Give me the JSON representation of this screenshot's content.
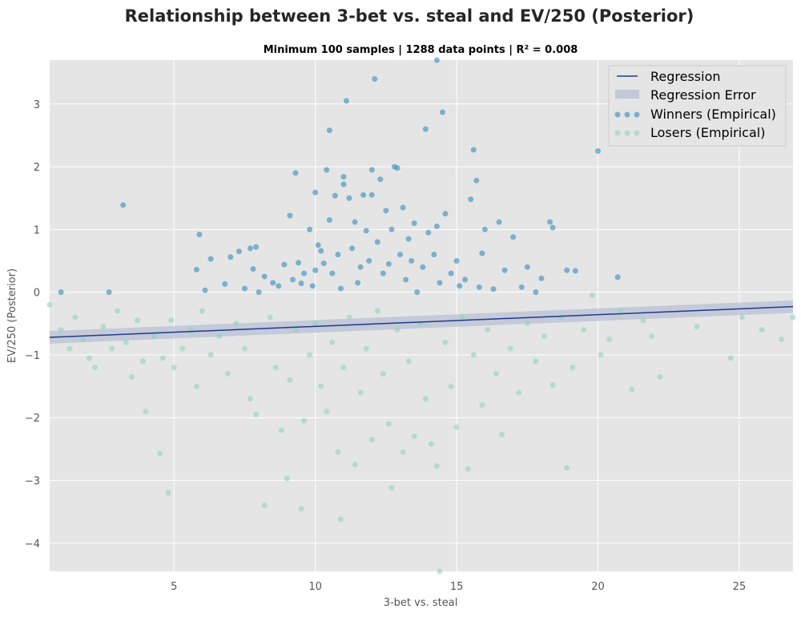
{
  "chart_data": {
    "type": "scatter",
    "title": "Relationship between 3-bet vs. steal and EV/250 (Posterior)",
    "subtitle": "Minimum 100 samples | 1288 data points | R²  =  0.008",
    "xlabel": "3-bet vs. steal",
    "ylabel": "EV/250 (Posterior)",
    "xlim": [
      0.6,
      26.9
    ],
    "ylim": [
      -4.45,
      3.7
    ],
    "x_ticks": [
      5,
      10,
      15,
      20,
      25
    ],
    "y_ticks": [
      -4,
      -3,
      -2,
      -1,
      0,
      1,
      2,
      3
    ],
    "x_tick_labels": [
      "5",
      "10",
      "15",
      "20",
      "25"
    ],
    "y_tick_labels": [
      "−4",
      "−3",
      "−2",
      "−1",
      "0",
      "1",
      "2",
      "3"
    ],
    "grid": true,
    "legend_position": "top-right",
    "legend": [
      {
        "label": "Regression",
        "kind": "line"
      },
      {
        "label": "Regression Error",
        "kind": "band"
      },
      {
        "label": "Winners (Empirical)",
        "kind": "scatter"
      },
      {
        "label": "Losers (Empirical)",
        "kind": "scatter"
      }
    ],
    "regression": {
      "x": [
        0.6,
        26.9
      ],
      "y": [
        -0.72,
        -0.23
      ],
      "error_halfwidth": 0.1
    },
    "winners_points": [
      [
        1.0,
        0.0
      ],
      [
        2.7,
        0.0
      ],
      [
        3.2,
        1.39
      ],
      [
        5.8,
        0.36
      ],
      [
        5.9,
        0.92
      ],
      [
        6.1,
        0.03
      ],
      [
        6.3,
        0.53
      ],
      [
        6.8,
        0.13
      ],
      [
        7.0,
        0.56
      ],
      [
        7.3,
        0.65
      ],
      [
        7.5,
        0.06
      ],
      [
        7.7,
        0.7
      ],
      [
        7.8,
        0.37
      ],
      [
        7.9,
        0.72
      ],
      [
        8.0,
        0.0
      ],
      [
        8.2,
        0.25
      ],
      [
        8.5,
        0.15
      ],
      [
        8.7,
        0.1
      ],
      [
        8.9,
        0.44
      ],
      [
        9.1,
        1.22
      ],
      [
        9.2,
        0.2
      ],
      [
        9.3,
        1.9
      ],
      [
        9.4,
        0.47
      ],
      [
        9.5,
        0.14
      ],
      [
        9.6,
        0.3
      ],
      [
        9.8,
        1.0
      ],
      [
        9.9,
        0.1
      ],
      [
        10.0,
        0.35
      ],
      [
        10.0,
        1.59
      ],
      [
        10.1,
        0.75
      ],
      [
        10.2,
        0.66
      ],
      [
        10.3,
        0.46
      ],
      [
        10.4,
        1.95
      ],
      [
        10.5,
        2.58
      ],
      [
        10.5,
        1.15
      ],
      [
        10.6,
        0.3
      ],
      [
        10.7,
        1.54
      ],
      [
        10.8,
        0.6
      ],
      [
        10.9,
        0.06
      ],
      [
        11.0,
        1.72
      ],
      [
        11.0,
        1.84
      ],
      [
        11.1,
        3.05
      ],
      [
        11.2,
        1.5
      ],
      [
        11.3,
        0.7
      ],
      [
        11.4,
        1.12
      ],
      [
        11.5,
        0.15
      ],
      [
        11.6,
        0.4
      ],
      [
        11.7,
        1.55
      ],
      [
        11.8,
        0.98
      ],
      [
        11.9,
        0.5
      ],
      [
        12.0,
        1.95
      ],
      [
        12.0,
        1.55
      ],
      [
        12.1,
        3.4
      ],
      [
        12.2,
        0.8
      ],
      [
        12.3,
        1.8
      ],
      [
        12.4,
        0.3
      ],
      [
        12.5,
        1.3
      ],
      [
        12.6,
        0.45
      ],
      [
        12.7,
        1.0
      ],
      [
        12.8,
        2.0
      ],
      [
        12.9,
        1.98
      ],
      [
        13.0,
        0.6
      ],
      [
        13.1,
        1.35
      ],
      [
        13.2,
        0.2
      ],
      [
        13.3,
        0.85
      ],
      [
        13.4,
        0.5
      ],
      [
        13.5,
        1.1
      ],
      [
        13.6,
        0.0
      ],
      [
        13.8,
        0.4
      ],
      [
        13.9,
        2.6
      ],
      [
        14.0,
        0.95
      ],
      [
        14.2,
        0.6
      ],
      [
        14.3,
        1.05
      ],
      [
        14.3,
        3.7
      ],
      [
        14.4,
        0.15
      ],
      [
        14.5,
        2.87
      ],
      [
        14.6,
        1.25
      ],
      [
        14.8,
        0.3
      ],
      [
        15.0,
        0.5
      ],
      [
        15.1,
        0.1
      ],
      [
        15.3,
        0.2
      ],
      [
        15.5,
        1.48
      ],
      [
        15.6,
        2.27
      ],
      [
        15.7,
        1.78
      ],
      [
        15.8,
        0.08
      ],
      [
        15.9,
        0.62
      ],
      [
        16.0,
        1.0
      ],
      [
        16.3,
        0.05
      ],
      [
        16.5,
        1.12
      ],
      [
        16.7,
        0.35
      ],
      [
        17.0,
        0.88
      ],
      [
        17.3,
        0.08
      ],
      [
        17.5,
        0.4
      ],
      [
        17.8,
        0.0
      ],
      [
        18.0,
        0.22
      ],
      [
        18.3,
        1.12
      ],
      [
        18.4,
        1.03
      ],
      [
        18.9,
        0.35
      ],
      [
        19.2,
        0.34
      ],
      [
        20.0,
        2.25
      ],
      [
        20.7,
        0.24
      ]
    ],
    "losers_points": [
      [
        0.6,
        -0.2
      ],
      [
        1.0,
        -0.6
      ],
      [
        1.3,
        -0.9
      ],
      [
        1.5,
        -0.4
      ],
      [
        1.8,
        -0.75
      ],
      [
        2.0,
        -1.05
      ],
      [
        2.2,
        -1.2
      ],
      [
        2.5,
        -0.55
      ],
      [
        2.8,
        -0.9
      ],
      [
        3.0,
        -0.3
      ],
      [
        3.3,
        -0.8
      ],
      [
        3.5,
        -1.35
      ],
      [
        3.7,
        -0.45
      ],
      [
        3.9,
        -1.1
      ],
      [
        4.0,
        -1.9
      ],
      [
        4.3,
        -0.7
      ],
      [
        4.5,
        -2.57
      ],
      [
        4.6,
        -1.05
      ],
      [
        4.8,
        -3.2
      ],
      [
        4.9,
        -0.45
      ],
      [
        5.0,
        -1.2
      ],
      [
        5.3,
        -0.9
      ],
      [
        5.6,
        -0.6
      ],
      [
        5.8,
        -1.5
      ],
      [
        6.0,
        -0.3
      ],
      [
        6.3,
        -1.0
      ],
      [
        6.6,
        -0.7
      ],
      [
        6.9,
        -1.3
      ],
      [
        7.2,
        -0.5
      ],
      [
        7.5,
        -0.9
      ],
      [
        7.7,
        -1.7
      ],
      [
        7.9,
        -1.95
      ],
      [
        8.2,
        -3.4
      ],
      [
        8.4,
        -0.4
      ],
      [
        8.6,
        -1.2
      ],
      [
        8.8,
        -2.2
      ],
      [
        9.0,
        -2.97
      ],
      [
        9.1,
        -1.4
      ],
      [
        9.3,
        -0.6
      ],
      [
        9.5,
        -3.45
      ],
      [
        9.6,
        -2.05
      ],
      [
        9.8,
        -1.0
      ],
      [
        10.0,
        -0.5
      ],
      [
        10.2,
        -1.5
      ],
      [
        10.4,
        -1.9
      ],
      [
        10.6,
        -0.8
      ],
      [
        10.8,
        -2.55
      ],
      [
        10.9,
        -3.62
      ],
      [
        11.0,
        -1.2
      ],
      [
        11.2,
        -0.4
      ],
      [
        11.4,
        -2.75
      ],
      [
        11.6,
        -1.6
      ],
      [
        11.8,
        -0.9
      ],
      [
        12.0,
        -2.35
      ],
      [
        12.2,
        -0.3
      ],
      [
        12.4,
        -1.3
      ],
      [
        12.6,
        -2.1
      ],
      [
        12.7,
        -3.12
      ],
      [
        12.9,
        -0.6
      ],
      [
        13.1,
        -2.55
      ],
      [
        13.3,
        -1.1
      ],
      [
        13.5,
        -2.3
      ],
      [
        13.7,
        -0.5
      ],
      [
        13.9,
        -1.7
      ],
      [
        14.1,
        -2.42
      ],
      [
        14.3,
        -2.77
      ],
      [
        14.4,
        -4.45
      ],
      [
        14.6,
        -0.8
      ],
      [
        14.8,
        -1.5
      ],
      [
        15.0,
        -2.15
      ],
      [
        15.2,
        -0.4
      ],
      [
        15.4,
        -2.82
      ],
      [
        15.6,
        -1.0
      ],
      [
        15.9,
        -1.8
      ],
      [
        16.1,
        -0.6
      ],
      [
        16.4,
        -1.3
      ],
      [
        16.6,
        -2.27
      ],
      [
        16.9,
        -0.9
      ],
      [
        17.2,
        -1.6
      ],
      [
        17.5,
        -0.5
      ],
      [
        17.8,
        -1.1
      ],
      [
        18.1,
        -0.7
      ],
      [
        18.4,
        -1.48
      ],
      [
        18.7,
        -0.4
      ],
      [
        18.9,
        -2.8
      ],
      [
        19.1,
        -1.2
      ],
      [
        19.5,
        -0.6
      ],
      [
        19.8,
        -0.05
      ],
      [
        20.1,
        -1.0
      ],
      [
        20.4,
        -0.75
      ],
      [
        20.8,
        -0.3
      ],
      [
        21.2,
        -1.55
      ],
      [
        21.6,
        -0.45
      ],
      [
        21.9,
        -0.7
      ],
      [
        22.2,
        -1.35
      ],
      [
        23.5,
        -0.55
      ],
      [
        24.7,
        -1.05
      ],
      [
        25.1,
        -0.4
      ],
      [
        25.8,
        -0.6
      ],
      [
        26.5,
        -0.75
      ],
      [
        26.9,
        -0.4
      ]
    ],
    "colors": {
      "plot_background": "#e5e5e5",
      "grid": "#ffffff",
      "regression_line": "#1f3a8a",
      "regression_band": "#b8c0d6",
      "winners": "#348abd",
      "losers": "#8fd4bc",
      "tick_text": "#555555"
    }
  }
}
